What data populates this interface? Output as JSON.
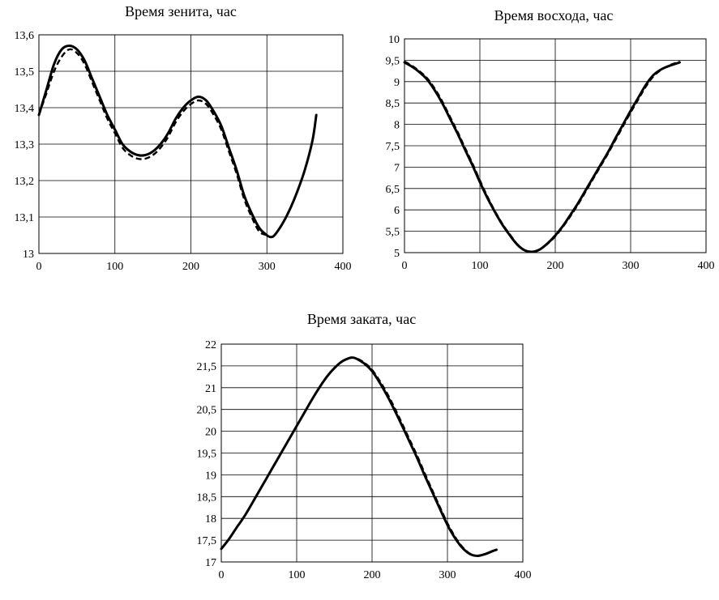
{
  "colors": {
    "line": "#000000",
    "grid": "#000000",
    "background": "#ffffff"
  },
  "chart_data": [
    {
      "type": "line",
      "title": "Время зенита, час",
      "xlabel": "",
      "ylabel": "",
      "xlim": [
        0,
        400
      ],
      "ylim": [
        13,
        13.6
      ],
      "x_ticks": [
        0,
        100,
        200,
        300,
        400
      ],
      "x_tick_labels": [
        "0",
        "100",
        "200",
        "300",
        "400"
      ],
      "y_ticks": [
        13,
        13.1,
        13.2,
        13.3,
        13.4,
        13.5,
        13.6
      ],
      "y_tick_labels": [
        "13",
        "13,1",
        "13,2",
        "13,3",
        "13,4",
        "13,5",
        "13,6"
      ],
      "grid": true,
      "legend": "none",
      "series": [
        {
          "style": "solid",
          "x": [
            0,
            10,
            20,
            30,
            40,
            50,
            60,
            70,
            80,
            90,
            100,
            110,
            120,
            130,
            140,
            150,
            160,
            170,
            180,
            190,
            200,
            210,
            220,
            230,
            240,
            250,
            260,
            270,
            280,
            290,
            300,
            305,
            310,
            320,
            330,
            340,
            350,
            360,
            365
          ],
          "y": [
            13.38,
            13.45,
            13.52,
            13.56,
            13.57,
            13.56,
            13.53,
            13.48,
            13.43,
            13.38,
            13.34,
            13.3,
            13.28,
            13.27,
            13.27,
            13.28,
            13.3,
            13.33,
            13.37,
            13.4,
            13.42,
            13.43,
            13.42,
            13.39,
            13.35,
            13.29,
            13.23,
            13.16,
            13.11,
            13.07,
            13.05,
            13.045,
            13.05,
            13.08,
            13.12,
            13.17,
            13.23,
            13.31,
            13.38
          ]
        },
        {
          "style": "dashed",
          "x": [
            0,
            10,
            20,
            30,
            40,
            50,
            60,
            70,
            80,
            90,
            100,
            110,
            120,
            130,
            140,
            150,
            160,
            170,
            180,
            190,
            200,
            210,
            220,
            230,
            240,
            250,
            260,
            270,
            280,
            290,
            300,
            305,
            310,
            320,
            330,
            340,
            350,
            360,
            365
          ],
          "y": [
            13.38,
            13.44,
            13.5,
            13.54,
            13.56,
            13.55,
            13.52,
            13.47,
            13.42,
            13.37,
            13.33,
            13.29,
            13.27,
            13.26,
            13.26,
            13.27,
            13.29,
            13.32,
            13.36,
            13.39,
            13.41,
            13.42,
            13.41,
            13.38,
            13.34,
            13.28,
            13.22,
            13.15,
            13.1,
            13.06,
            13.05,
            13.045,
            13.05,
            13.08,
            13.12,
            13.17,
            13.23,
            13.31,
            13.38
          ]
        }
      ]
    },
    {
      "type": "line",
      "title": "Время восхода, час",
      "xlabel": "",
      "ylabel": "",
      "xlim": [
        0,
        400
      ],
      "ylim": [
        5,
        10
      ],
      "x_ticks": [
        0,
        100,
        200,
        300,
        400
      ],
      "x_tick_labels": [
        "0",
        "100",
        "200",
        "300",
        "400"
      ],
      "y_ticks": [
        5,
        5.5,
        6,
        6.5,
        7,
        7.5,
        8,
        8.5,
        9,
        9.5,
        10
      ],
      "y_tick_labels": [
        "5",
        "5,5",
        "6",
        "6,5",
        "7",
        "7,5",
        "8",
        "8,5",
        "9",
        "9,5",
        "10"
      ],
      "grid": true,
      "legend": "none",
      "series": [
        {
          "style": "solid",
          "x": [
            0,
            10,
            20,
            30,
            40,
            50,
            60,
            70,
            80,
            90,
            100,
            110,
            120,
            130,
            140,
            150,
            160,
            170,
            180,
            190,
            200,
            210,
            220,
            230,
            240,
            250,
            260,
            270,
            280,
            290,
            300,
            310,
            320,
            330,
            340,
            350,
            360,
            365
          ],
          "y": [
            9.45,
            9.35,
            9.22,
            9.05,
            8.8,
            8.5,
            8.15,
            7.8,
            7.42,
            7.05,
            6.65,
            6.28,
            5.95,
            5.65,
            5.4,
            5.18,
            5.05,
            5.02,
            5.08,
            5.22,
            5.4,
            5.62,
            5.88,
            6.15,
            6.45,
            6.75,
            7.05,
            7.35,
            7.68,
            8.0,
            8.32,
            8.62,
            8.92,
            9.15,
            9.28,
            9.36,
            9.42,
            9.45
          ]
        },
        {
          "style": "dashed",
          "x": [
            0,
            10,
            20,
            30,
            40,
            50,
            60,
            70,
            80,
            90,
            100,
            110,
            120,
            130,
            140,
            150,
            160,
            170,
            180,
            190,
            200,
            210,
            220,
            230,
            240,
            250,
            260,
            270,
            280,
            290,
            300,
            310,
            320,
            330,
            340,
            350,
            360,
            365
          ],
          "y": [
            9.47,
            9.37,
            9.24,
            9.08,
            8.84,
            8.54,
            8.19,
            7.84,
            7.46,
            7.09,
            6.69,
            6.31,
            5.97,
            5.67,
            5.42,
            5.19,
            5.05,
            5.02,
            5.08,
            5.21,
            5.38,
            5.6,
            5.85,
            6.12,
            6.42,
            6.72,
            7.02,
            7.32,
            7.64,
            7.96,
            8.28,
            8.58,
            8.88,
            9.12,
            9.27,
            9.37,
            9.44,
            9.48
          ]
        }
      ]
    },
    {
      "type": "line",
      "title": "Время заката, час",
      "xlabel": "",
      "ylabel": "",
      "xlim": [
        0,
        400
      ],
      "ylim": [
        17,
        22
      ],
      "x_ticks": [
        0,
        100,
        200,
        300,
        400
      ],
      "x_tick_labels": [
        "0",
        "100",
        "200",
        "300",
        "400"
      ],
      "y_ticks": [
        17,
        17.5,
        18,
        18.5,
        19,
        19.5,
        20,
        20.5,
        21,
        21.5,
        22
      ],
      "y_tick_labels": [
        "17",
        "17,5",
        "18",
        "18,5",
        "19",
        "19,5",
        "20",
        "20,5",
        "21",
        "21,5",
        "22"
      ],
      "grid": true,
      "legend": "none",
      "series": [
        {
          "style": "solid",
          "x": [
            0,
            10,
            20,
            30,
            40,
            50,
            60,
            70,
            80,
            90,
            100,
            110,
            120,
            130,
            140,
            150,
            160,
            170,
            175,
            180,
            190,
            200,
            210,
            220,
            230,
            240,
            250,
            260,
            270,
            280,
            290,
            300,
            310,
            320,
            330,
            340,
            350,
            360,
            365
          ],
          "y": [
            17.3,
            17.52,
            17.78,
            18.03,
            18.32,
            18.62,
            18.92,
            19.22,
            19.52,
            19.82,
            20.12,
            20.42,
            20.72,
            21.0,
            21.25,
            21.45,
            21.6,
            21.68,
            21.69,
            21.66,
            21.55,
            21.38,
            21.12,
            20.82,
            20.48,
            20.12,
            19.75,
            19.38,
            18.98,
            18.6,
            18.22,
            17.85,
            17.55,
            17.32,
            17.18,
            17.14,
            17.18,
            17.25,
            17.28
          ]
        },
        {
          "style": "dashed",
          "x": [
            0,
            10,
            20,
            30,
            40,
            50,
            60,
            70,
            80,
            90,
            100,
            110,
            120,
            130,
            140,
            150,
            160,
            170,
            175,
            180,
            190,
            200,
            210,
            220,
            230,
            240,
            250,
            260,
            270,
            280,
            290,
            300,
            310,
            320,
            330,
            340,
            350,
            360,
            365
          ],
          "y": [
            17.3,
            17.52,
            17.78,
            18.03,
            18.32,
            18.62,
            18.92,
            19.22,
            19.52,
            19.82,
            20.12,
            20.42,
            20.72,
            21.0,
            21.25,
            21.45,
            21.6,
            21.68,
            21.69,
            21.67,
            21.57,
            21.41,
            21.16,
            20.87,
            20.53,
            20.17,
            19.8,
            19.43,
            19.03,
            18.64,
            18.26,
            17.89,
            17.58,
            17.34,
            17.19,
            17.14,
            17.18,
            17.25,
            17.28
          ]
        }
      ]
    }
  ]
}
